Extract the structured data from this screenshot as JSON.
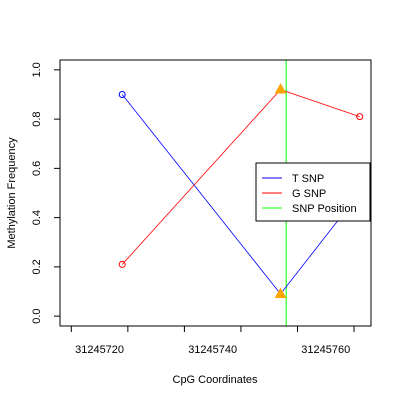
{
  "chart_data": {
    "type": "line",
    "xlabel": "CpG Coordinates",
    "ylabel": "Methylation Frequency",
    "xlim": [
      31245713,
      31245768
    ],
    "ylim": [
      -0.04,
      1.04
    ],
    "x_ticks": [
      31245715,
      31245725,
      31245735,
      31245745,
      31245755,
      31245765
    ],
    "x_tick_labels": [
      {
        "value": 31245720,
        "label": "31245720"
      },
      {
        "value": 31245740,
        "label": "31245740"
      },
      {
        "value": 31245760,
        "label": "31245760"
      }
    ],
    "y_ticks": [
      {
        "value": 0.0,
        "label": "0.0"
      },
      {
        "value": 0.2,
        "label": "0.2"
      },
      {
        "value": 0.4,
        "label": "0.4"
      },
      {
        "value": 0.6,
        "label": "0.6"
      },
      {
        "value": 0.8,
        "label": "0.8"
      },
      {
        "value": 1.0,
        "label": "1.0"
      }
    ],
    "grid": false,
    "legend_position": "right",
    "series": [
      {
        "name": "T SNP",
        "color": "#0000ff",
        "points": [
          {
            "x": 31245724,
            "y": 0.9,
            "marker": "circle"
          },
          {
            "x": 31245752,
            "y": 0.09,
            "marker": "triangle"
          },
          {
            "x": 31245768,
            "y": 0.56,
            "marker": "none"
          }
        ]
      },
      {
        "name": "G SNP",
        "color": "#ff0000",
        "points": [
          {
            "x": 31245724,
            "y": 0.21,
            "marker": "circle"
          },
          {
            "x": 31245752,
            "y": 0.92,
            "marker": "triangle"
          },
          {
            "x": 31245766,
            "y": 0.81,
            "marker": "circle"
          }
        ]
      }
    ],
    "vertical_lines": [
      {
        "name": "SNP Position",
        "x": 31245753,
        "color": "#00ff00"
      }
    ],
    "highlight_marker_color": "#ffa500"
  }
}
